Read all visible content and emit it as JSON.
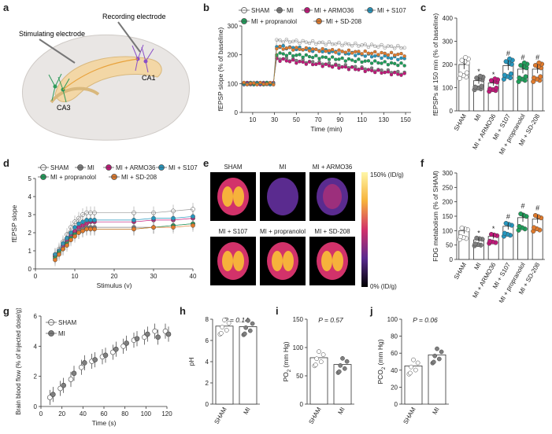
{
  "panel_labels": [
    "a",
    "b",
    "c",
    "d",
    "e",
    "f",
    "g",
    "h",
    "i",
    "j"
  ],
  "colors": {
    "SHAM": "#ffffff",
    "MI": "#7f7f7f",
    "MI + ARMO36": "#c2177a",
    "MI + S107": "#2596be",
    "MI + propranolol": "#1f9e5a",
    "MI + SD-208": "#e07a2c",
    "brain_fill": "#e9e6e4",
    "hippocampus": "#f3d7a6"
  },
  "panel_a": {
    "stim_label": "Stimulating electrode",
    "rec_label": "Recording electrode",
    "ca1_label": "CA1",
    "ca3_label": "CA3"
  },
  "chart_data": [
    {
      "id": "b",
      "type": "line",
      "xlabel": "Time (min)",
      "ylabel": "fEPSP slope (% of baseline)",
      "xlim": [
        0,
        155
      ],
      "ylim": [
        0,
        300
      ],
      "xticks": [
        10,
        30,
        50,
        70,
        90,
        110,
        130,
        150
      ],
      "yticks": [
        0,
        100,
        200,
        300
      ],
      "legend": [
        "SHAM",
        "MI",
        "MI + ARMO36",
        "MI + S107",
        "MI + propranolol",
        "MI + SD-208"
      ],
      "series": [
        {
          "name": "SHAM",
          "start": 250,
          "end": 225
        },
        {
          "name": "MI",
          "start": 190,
          "end": 135
        },
        {
          "name": "MI + ARMO36",
          "start": 185,
          "end": 130
        },
        {
          "name": "MI + S107",
          "start": 230,
          "end": 185
        },
        {
          "name": "MI + propranolol",
          "start": 205,
          "end": 165
        },
        {
          "name": "MI + SD-208",
          "start": 225,
          "end": 200
        }
      ]
    },
    {
      "id": "c",
      "type": "bar",
      "ylabel": "fEPSPs at 150 min (% of baseline)",
      "ylim": [
        0,
        400
      ],
      "yticks": [
        0,
        100,
        200,
        300,
        400
      ],
      "categories": [
        "SHAM",
        "MI",
        "MI + ARMO36",
        "MI + S107",
        "MI + propranolol",
        "MI + SD-208"
      ],
      "values": [
        200,
        130,
        120,
        195,
        180,
        180
      ],
      "sig": [
        "",
        "*",
        "*",
        "#",
        "#",
        "#"
      ]
    },
    {
      "id": "d",
      "type": "line",
      "xlabel": "Stimulus (v)",
      "ylabel": "fEPSP slope",
      "xlim": [
        0,
        40
      ],
      "ylim": [
        0,
        5
      ],
      "xticks": [
        0,
        10,
        20,
        30,
        40
      ],
      "yticks": [
        0,
        1,
        2,
        3,
        4,
        5
      ],
      "x": [
        5,
        6,
        7,
        8,
        9,
        10,
        11,
        12,
        13,
        14,
        15,
        25,
        30,
        35,
        40
      ],
      "legend": [
        "SHAM",
        "MI",
        "MI + ARMO36",
        "MI + S107",
        "MI + propranolol",
        "MI + SD-208"
      ],
      "series": [
        {
          "name": "SHAM",
          "values": [
            0.8,
            1.1,
            1.5,
            1.9,
            2.3,
            2.6,
            2.8,
            3.0,
            3.1,
            3.1,
            3.1,
            3.1,
            3.1,
            3.2,
            3.3
          ]
        },
        {
          "name": "MI",
          "values": [
            0.7,
            0.9,
            1.2,
            1.5,
            1.8,
            2.0,
            2.1,
            2.2,
            2.3,
            2.3,
            2.3,
            2.3,
            2.3,
            2.4,
            2.5
          ]
        },
        {
          "name": "MI + ARMO36",
          "values": [
            0.7,
            1.0,
            1.3,
            1.6,
            1.9,
            2.1,
            2.3,
            2.4,
            2.5,
            2.6,
            2.6,
            2.6,
            2.7,
            2.7,
            2.8
          ]
        },
        {
          "name": "MI + S107",
          "values": [
            0.8,
            1.0,
            1.4,
            1.7,
            2.0,
            2.3,
            2.5,
            2.6,
            2.7,
            2.7,
            2.7,
            2.7,
            2.8,
            2.8,
            2.9
          ]
        },
        {
          "name": "MI + propranolol",
          "values": [
            0.6,
            0.9,
            1.1,
            1.4,
            1.7,
            1.9,
            2.0,
            2.1,
            2.2,
            2.2,
            2.2,
            2.2,
            2.3,
            2.4,
            2.5
          ]
        },
        {
          "name": "MI + SD-208",
          "values": [
            0.5,
            0.8,
            1.1,
            1.3,
            1.6,
            1.8,
            2.0,
            2.1,
            2.2,
            2.2,
            2.2,
            2.2,
            2.3,
            2.3,
            2.4
          ]
        }
      ]
    },
    {
      "id": "f",
      "type": "bar",
      "ylabel": "FDG metabolism (% of SHAM)",
      "ylim": [
        0,
        300
      ],
      "yticks": [
        0,
        50,
        100,
        150,
        200,
        250,
        300
      ],
      "categories": [
        "SHAM",
        "MI",
        "MI + ARMO36",
        "MI + S107",
        "MI + propranolol",
        "MI + SD-208"
      ],
      "values": [
        100,
        68,
        80,
        115,
        145,
        140
      ],
      "sig": [
        "",
        "*",
        "*",
        "#",
        "#",
        "#"
      ]
    },
    {
      "id": "g",
      "type": "scatter",
      "xlabel": "Time (s)",
      "ylabel": "Brain blood flow\n(% of injected dose/g)",
      "xlim": [
        0,
        120
      ],
      "ylim": [
        0,
        6
      ],
      "xticks": [
        0,
        20,
        40,
        60,
        80,
        100,
        120
      ],
      "yticks": [
        0,
        2,
        4,
        6
      ],
      "x": [
        10,
        20,
        30,
        40,
        50,
        60,
        70,
        80,
        90,
        100,
        110,
        120
      ],
      "legend": [
        "SHAM",
        "MI"
      ],
      "series": [
        {
          "name": "SHAM",
          "values": [
            0.6,
            1.2,
            1.8,
            2.6,
            3.0,
            3.3,
            3.6,
            4.0,
            4.4,
            4.6,
            5.0,
            5.0
          ]
        },
        {
          "name": "MI",
          "values": [
            0.8,
            1.4,
            2.2,
            2.9,
            3.1,
            3.4,
            3.8,
            4.2,
            4.5,
            4.8,
            4.6,
            4.8
          ]
        }
      ]
    },
    {
      "id": "h",
      "type": "bar",
      "ylabel": "pH",
      "ylim": [
        0,
        8
      ],
      "yticks": [
        0,
        2,
        4,
        6,
        8
      ],
      "categories": [
        "SHAM",
        "MI"
      ],
      "values": [
        7.35,
        7.3
      ],
      "stat": "P = 0.14"
    },
    {
      "id": "i",
      "type": "bar",
      "ylabel": "PO",
      "ylabel_sub": "2",
      "ylabel_tail": " (mm Hg)",
      "ylim": [
        0,
        150
      ],
      "yticks": [
        0,
        50,
        100,
        150
      ],
      "categories": [
        "SHAM",
        "MI"
      ],
      "values": [
        82,
        70
      ],
      "stat": "P = 0.57"
    },
    {
      "id": "j",
      "type": "bar",
      "ylabel": "PCO",
      "ylabel_sub": "2",
      "ylabel_tail": " (mm Hg)",
      "ylim": [
        0,
        100
      ],
      "yticks": [
        0,
        20,
        40,
        60,
        80,
        100
      ],
      "categories": [
        "SHAM",
        "MI"
      ],
      "values": [
        45,
        58
      ],
      "stat": "P = 0.06"
    }
  ],
  "panel_e": {
    "labels_top": [
      "SHAM",
      "MI",
      "MI + ARMO36"
    ],
    "labels_bottom": [
      "MI + S107",
      "MI + propranolol",
      "MI + SD-208"
    ],
    "scale_top": "150% (ID/g)",
    "scale_bottom": "0% (ID/g)",
    "intensity": [
      0.85,
      0.3,
      0.45,
      0.75,
      0.95,
      0.7
    ]
  }
}
